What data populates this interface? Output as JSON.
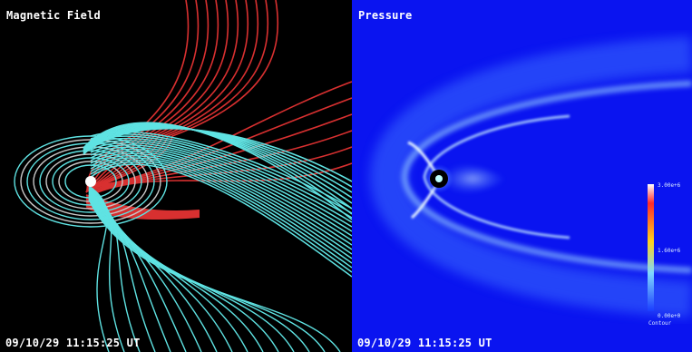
{
  "left_panel": {
    "title": "Magnetic Field",
    "timestamp": "09/10/29 11:15:25 UT",
    "background": "#000000",
    "open_line_color": "#d83030",
    "closed_line_color": "#5fe3e3"
  },
  "right_panel": {
    "title": "Pressure",
    "timestamp": "09/10/29 11:15:25 UT",
    "background": "#0a14f0",
    "colorbar": {
      "max_label": "3.00e+6",
      "mid_label": "1.60e+6",
      "min_label": "0.00e+0",
      "caption": "Contour"
    }
  }
}
